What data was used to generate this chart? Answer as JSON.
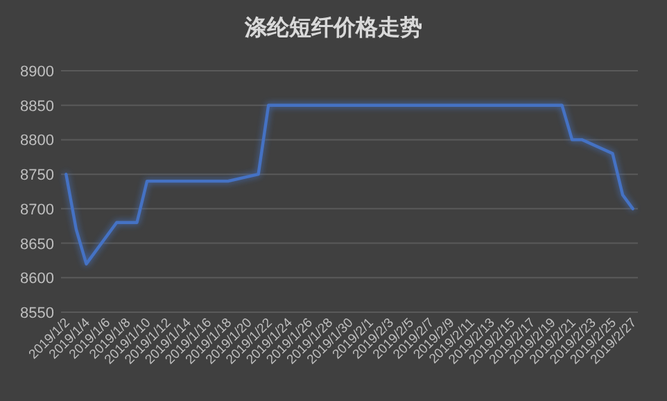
{
  "chart_data": {
    "type": "line",
    "title": "涤纶短纤价格走势",
    "x": [
      "2019-01-02",
      "2019-01-03",
      "2019-01-04",
      "2019-01-07",
      "2019-01-09",
      "2019-01-10",
      "2019-01-18",
      "2019-01-21",
      "2019-01-22",
      "2019-02-20",
      "2019-02-21",
      "2019-02-22",
      "2019-02-25",
      "2019-02-26",
      "2019-02-27"
    ],
    "series": [
      {
        "color": "#4472c4",
        "values": [
          8750,
          8670,
          8620,
          8680,
          8680,
          8740,
          8740,
          8750,
          8850,
          8850,
          8800,
          8800,
          8780,
          8720,
          8700
        ]
      }
    ],
    "xlim": [
      "2019-01-01T12:00",
      "2019-02-27T12:00"
    ],
    "xticks": [
      {
        "value": "2019-01-02",
        "label": "2019/1/2"
      },
      {
        "value": "2019-01-04",
        "label": "2019/1/4"
      },
      {
        "value": "2019-01-06",
        "label": "2019/1/6"
      },
      {
        "value": "2019-01-08",
        "label": "2019/1/8"
      },
      {
        "value": "2019-01-10",
        "label": "2019/1/10"
      },
      {
        "value": "2019-01-12",
        "label": "2019/1/12"
      },
      {
        "value": "2019-01-14",
        "label": "2019/1/14"
      },
      {
        "value": "2019-01-16",
        "label": "2019/1/16"
      },
      {
        "value": "2019-01-18",
        "label": "2019/1/18"
      },
      {
        "value": "2019-01-20",
        "label": "2019/1/20"
      },
      {
        "value": "2019-01-22",
        "label": "2019/1/22"
      },
      {
        "value": "2019-01-24",
        "label": "2019/1/24"
      },
      {
        "value": "2019-01-26",
        "label": "2019/1/26"
      },
      {
        "value": "2019-01-28",
        "label": "2019/1/28"
      },
      {
        "value": "2019-01-30",
        "label": "2019/1/30"
      },
      {
        "value": "2019-02-01",
        "label": "2019/2/1"
      },
      {
        "value": "2019-02-03",
        "label": "2019/2/3"
      },
      {
        "value": "2019-02-05",
        "label": "2019/2/5"
      },
      {
        "value": "2019-02-07",
        "label": "2019/2/7"
      },
      {
        "value": "2019-02-09",
        "label": "2019/2/9"
      },
      {
        "value": "2019-02-11",
        "label": "2019/2/11"
      },
      {
        "value": "2019-02-13",
        "label": "2019/2/13"
      },
      {
        "value": "2019-02-15",
        "label": "2019/2/15"
      },
      {
        "value": "2019-02-17",
        "label": "2019/2/17"
      },
      {
        "value": "2019-02-19",
        "label": "2019/2/19"
      },
      {
        "value": "2019-02-21",
        "label": "2019/2/21"
      },
      {
        "value": "2019-02-23",
        "label": "2019/2/23"
      },
      {
        "value": "2019-02-25",
        "label": "2019/2/25"
      },
      {
        "value": "2019-02-27",
        "label": "2019/2/27"
      }
    ],
    "ylim": [
      8550,
      8900
    ],
    "yticks": [
      8550,
      8600,
      8650,
      8700,
      8750,
      8800,
      8850,
      8900
    ],
    "grid": "y"
  }
}
